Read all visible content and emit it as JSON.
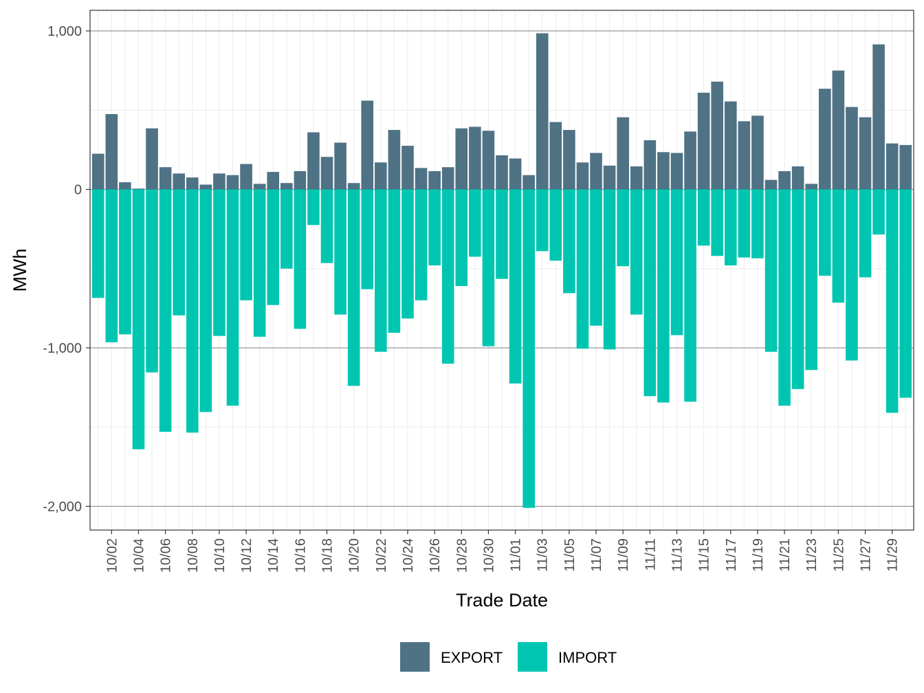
{
  "chart_data": {
    "type": "bar",
    "stacked": true,
    "xlabel": "Trade Date",
    "ylabel": "MWh",
    "ylim": [
      -2150,
      1130
    ],
    "y_ticks": [
      1000,
      0,
      -1000,
      -2000
    ],
    "y_tick_labels": [
      "1,000",
      "0",
      "-1,000",
      "-2,000"
    ],
    "x_tick_labels": [
      "10/02",
      "10/04",
      "10/06",
      "10/08",
      "10/10",
      "10/12",
      "10/14",
      "10/16",
      "10/18",
      "10/20",
      "10/22",
      "10/24",
      "10/26",
      "10/28",
      "10/30",
      "11/01",
      "11/03",
      "11/05",
      "11/07",
      "11/09",
      "11/11",
      "11/13",
      "11/15",
      "11/17",
      "11/19",
      "11/21",
      "11/23",
      "11/25",
      "11/27",
      "11/29"
    ],
    "categories": [
      "10/01",
      "10/02",
      "10/03",
      "10/04",
      "10/05",
      "10/06",
      "10/07",
      "10/08",
      "10/09",
      "10/10",
      "10/11",
      "10/12",
      "10/13",
      "10/14",
      "10/15",
      "10/16",
      "10/17",
      "10/18",
      "10/19",
      "10/20",
      "10/21",
      "10/22",
      "10/23",
      "10/24",
      "10/25",
      "10/26",
      "10/27",
      "10/28",
      "10/29",
      "10/30",
      "10/31",
      "11/01",
      "11/02",
      "11/03",
      "11/04",
      "11/05",
      "11/06",
      "11/07",
      "11/08",
      "11/09",
      "11/10",
      "11/11",
      "11/12",
      "11/13",
      "11/14",
      "11/15",
      "11/16",
      "11/17",
      "11/18",
      "11/19",
      "11/20",
      "11/21",
      "11/22",
      "11/23",
      "11/24",
      "11/25",
      "11/26",
      "11/27",
      "11/28",
      "11/29",
      "11/30"
    ],
    "grid": true,
    "legend_position": "bottom",
    "series": [
      {
        "name": "EXPORT",
        "color": "#4F7285",
        "values": [
          225,
          475,
          45,
          5,
          385,
          140,
          100,
          75,
          30,
          100,
          90,
          160,
          35,
          110,
          40,
          115,
          360,
          205,
          295,
          40,
          560,
          170,
          375,
          275,
          135,
          115,
          140,
          385,
          395,
          370,
          215,
          195,
          90,
          985,
          425,
          375,
          170,
          230,
          150,
          455,
          145,
          310,
          235,
          230,
          365,
          610,
          680,
          555,
          430,
          465,
          60,
          115,
          145,
          35,
          635,
          750,
          520,
          455,
          915,
          290,
          280
        ]
      },
      {
        "name": "IMPORT",
        "color": "#00C6B1",
        "values": [
          -685,
          -965,
          -915,
          -1640,
          -1155,
          -1530,
          -795,
          -1535,
          -1405,
          -925,
          -1365,
          -700,
          -930,
          -730,
          -500,
          -880,
          -225,
          -465,
          -790,
          -1240,
          -630,
          -1025,
          -905,
          -815,
          -700,
          -480,
          -1100,
          -610,
          -425,
          -990,
          -565,
          -1225,
          -2010,
          -390,
          -450,
          -655,
          -1005,
          -860,
          -1010,
          -485,
          -790,
          -1305,
          -1345,
          -920,
          -1340,
          -355,
          -420,
          -480,
          -430,
          -435,
          -1025,
          -1365,
          -1260,
          -1140,
          -545,
          -715,
          -1080,
          -555,
          -285,
          -1410,
          -1315
        ]
      }
    ]
  }
}
